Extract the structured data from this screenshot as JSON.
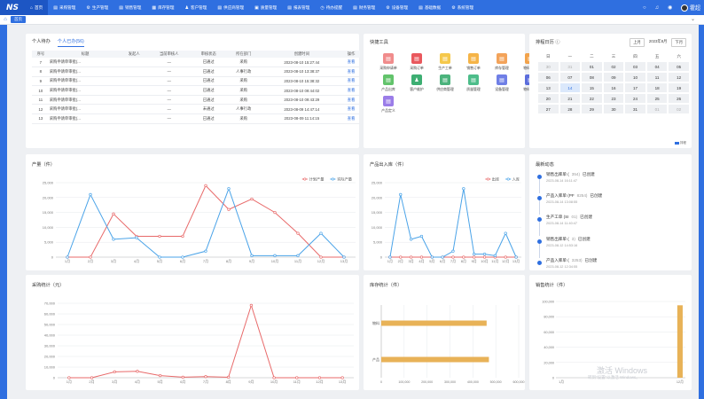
{
  "app": {
    "logo": "NS"
  },
  "menu": [
    {
      "label": "首页",
      "icon": "⌂",
      "active": true
    },
    {
      "label": "采购管理",
      "icon": "▤"
    },
    {
      "label": "生产管理",
      "icon": "⚙"
    },
    {
      "label": "销售管理",
      "icon": "▤"
    },
    {
      "label": "库存管理",
      "icon": "▦"
    },
    {
      "label": "客户管理",
      "icon": "♟"
    },
    {
      "label": "供应商管理",
      "icon": "▤"
    },
    {
      "label": "质量管理",
      "icon": "▣"
    },
    {
      "label": "报表管理",
      "icon": "▤"
    },
    {
      "label": "待办提醒",
      "icon": "◷"
    },
    {
      "label": "财务管理",
      "icon": "▤"
    },
    {
      "label": "设备管理",
      "icon": "⚙"
    },
    {
      "label": "基础数据",
      "icon": "▤"
    },
    {
      "label": "系统管理",
      "icon": "⚙"
    }
  ],
  "topright": {
    "icons": [
      "circle-icon",
      "bell-icon",
      "eye-icon"
    ],
    "user": "霍超"
  },
  "tabsbar": {
    "tab": "首页"
  },
  "tasks": {
    "tabs": [
      "个人待办",
      "个人已办(56)"
    ],
    "headers": [
      "序号",
      "标题",
      "发起人",
      "当前审核人",
      "审核状态",
      "所在部门",
      "创建时间",
      "操作"
    ],
    "rows": [
      [
        "7",
        "采购申请单审批(...",
        "",
        "—",
        "已通过",
        "采购",
        "2023-08-10 15:27:44",
        "查看"
      ],
      [
        "8",
        "采购申请单审批(...",
        "",
        "—",
        "已通过",
        "人事行政",
        "2023-08-10 13:38:37",
        "查看"
      ],
      [
        "9",
        "采购申请单审批(...",
        "",
        "—",
        "已通过",
        "采购",
        "2023-08-10 15:38:32",
        "查看"
      ],
      [
        "10",
        "采购申请单审批(...",
        "",
        "—",
        "已通过",
        "采购",
        "2023-08-10 09:44:02",
        "查看"
      ],
      [
        "11",
        "采购申请单审批(...",
        "",
        "—",
        "已通过",
        "采购",
        "2023-08-10 09:43:29",
        "查看"
      ],
      [
        "12",
        "采购申请单审批(...",
        "",
        "—",
        "未通过",
        "人事行政",
        "2023-08-09 14:47:14",
        "查看"
      ],
      [
        "13",
        "采购申请单审批(...",
        "",
        "—",
        "已通过",
        "采购",
        "2023-08-09 11:14:15",
        "查看"
      ]
    ]
  },
  "quick": {
    "title": "快捷工具",
    "items": [
      {
        "label": "采购申请单",
        "color": "#f08c8c",
        "icon": "▤"
      },
      {
        "label": "采购订单",
        "color": "#e9585d",
        "icon": "▤"
      },
      {
        "label": "生产工单",
        "color": "#f5c84b",
        "icon": "▤"
      },
      {
        "label": "销售订单",
        "color": "#f5b447",
        "icon": "▤"
      },
      {
        "label": "库存管理",
        "color": "#f3a35a",
        "icon": "▤"
      },
      {
        "label": "物料出库",
        "color": "#f2a34c",
        "icon": "▤"
      },
      {
        "label": "产品出库",
        "color": "#62c36b",
        "icon": "▤"
      },
      {
        "label": "客户维护",
        "color": "#3dae72",
        "icon": "♟"
      },
      {
        "label": "供应商管理",
        "color": "#4bb37c",
        "icon": "▤"
      },
      {
        "label": "质量管理",
        "color": "#4dbd8a",
        "icon": "▤"
      },
      {
        "label": "设备管理",
        "color": "#6f7fe6",
        "icon": "▤"
      },
      {
        "label": "物料定义",
        "color": "#5b6ddc",
        "icon": "▤"
      },
      {
        "label": "产品定义",
        "color": "#9b7de8",
        "icon": "▤"
      }
    ]
  },
  "calendar": {
    "title": "排程日历",
    "prev": "上月",
    "month": "2023年8月",
    "next": "下月",
    "weekdays": [
      "日",
      "一",
      "二",
      "三",
      "四",
      "五",
      "六"
    ],
    "weeks": [
      [
        "30",
        "31",
        "01",
        "02",
        "03",
        "04",
        "05"
      ],
      [
        "06",
        "07",
        "08",
        "09",
        "10",
        "11",
        "12"
      ],
      [
        "13",
        "14",
        "15",
        "16",
        "17",
        "18",
        "19"
      ],
      [
        "20",
        "21",
        "22",
        "23",
        "24",
        "25",
        "26"
      ],
      [
        "27",
        "28",
        "29",
        "30",
        "31",
        "01",
        "02"
      ]
    ],
    "legend": "排程"
  },
  "prod_chart": {
    "title": "产量（件）"
  },
  "io_chart": {
    "title": "产品出入库（件）"
  },
  "feed": {
    "title": "最新动态",
    "items": [
      {
        "text": "销售出库单 (",
        "code": "354)",
        "action": "已创建",
        "time": "2023-08-14 16:11:47"
      },
      {
        "text": "产品入库单 (PF",
        "code": "8254)",
        "action": "已创建",
        "time": "2023-08-14 13:08:55"
      },
      {
        "text": "生产工单 (SI",
        "code": "01)",
        "action": "已创建",
        "time": "2023-08-14 11:40:47"
      },
      {
        "text": "销售出库单 (",
        "code": "3)",
        "action": "已创建",
        "time": "2023-08-12 14:53:16"
      },
      {
        "text": "产品入库单 (",
        "code": "3253)",
        "action": "已创建",
        "time": "2023-08-12 12:34:55"
      }
    ]
  },
  "purchase_chart": {
    "title": "采购统计（元）"
  },
  "stock_chart": {
    "title": "库存统计（件）"
  },
  "sales_chart": {
    "title": "销售统计（件）"
  },
  "watermark": {
    "line1": "激活 Windows",
    "line2": "转到\"设置\"以激活 Windows。"
  },
  "chart_data": [
    {
      "type": "line",
      "title": "产量（件）",
      "categories": [
        "1月",
        "2月",
        "3月",
        "4月",
        "5月",
        "6月",
        "7月",
        "8月",
        "9月",
        "10月",
        "11月",
        "12月",
        "13月"
      ],
      "ylim": [
        0,
        25000
      ],
      "yticks": [
        0,
        5000,
        10000,
        15000,
        20000,
        25000
      ],
      "legend": "top-right",
      "series": [
        {
          "name": "计划产量",
          "color": "#e86a6a",
          "values": [
            0,
            0,
            14500,
            7000,
            7000,
            7000,
            24000,
            16000,
            19500,
            15000,
            8000,
            0,
            0
          ]
        },
        {
          "name": "实际产量",
          "color": "#4aa3e8",
          "values": [
            0,
            21000,
            6000,
            6500,
            0,
            0,
            2000,
            23000,
            500,
            500,
            500,
            8000,
            0
          ]
        }
      ]
    },
    {
      "type": "line",
      "title": "产品出入库（件）",
      "categories": [
        "1月",
        "2月",
        "3月",
        "4月",
        "5月",
        "6月",
        "7月",
        "8月",
        "9月",
        "10月",
        "11月",
        "12月",
        "13月"
      ],
      "ylim": [
        0,
        25000
      ],
      "yticks": [
        0,
        5000,
        10000,
        15000,
        20000,
        25000
      ],
      "legend": "top-right",
      "series": [
        {
          "name": "出库",
          "color": "#e86a6a",
          "values": [
            0,
            0,
            0,
            0,
            0,
            0,
            0,
            0,
            0,
            0,
            0,
            0,
            0
          ]
        },
        {
          "name": "入库",
          "color": "#4aa3e8",
          "values": [
            0,
            21000,
            6000,
            7000,
            0,
            0,
            2000,
            23000,
            1000,
            1000,
            500,
            8000,
            0
          ]
        }
      ]
    },
    {
      "type": "line",
      "title": "采购统计（元）",
      "categories": [
        "1月",
        "2月",
        "3月",
        "4月",
        "5月",
        "6月",
        "7月",
        "8月",
        "9月",
        "10月",
        "11月",
        "12月",
        "13月"
      ],
      "ylim": [
        0,
        70000
      ],
      "yticks": [
        0,
        10000,
        20000,
        30000,
        40000,
        50000,
        60000,
        70000
      ],
      "series": [
        {
          "name": "采购",
          "color": "#e86a6a",
          "values": [
            0,
            0,
            5500,
            6000,
            2000,
            500,
            1000,
            500,
            68000,
            0,
            0,
            0,
            0
          ]
        }
      ]
    },
    {
      "type": "bar",
      "orientation": "horizontal",
      "title": "库存统计（件）",
      "categories": [
        "物料",
        "产品"
      ],
      "values": [
        460000,
        470000
      ],
      "xlim": [
        0,
        600000
      ],
      "xticks": [
        0,
        100000,
        200000,
        300000,
        400000,
        500000,
        600000
      ]
    },
    {
      "type": "bar",
      "title": "销售统计（件）",
      "categories": [
        "1月",
        "2月",
        "3月",
        "4月",
        "5月",
        "6月",
        "7月",
        "8月",
        "9月",
        "10月",
        "11月",
        "12月"
      ],
      "values": [
        0,
        0,
        0,
        0,
        0,
        0,
        0,
        0,
        0,
        0,
        0,
        95000
      ],
      "ylim": [
        0,
        100000
      ],
      "yticks": [
        0,
        20000,
        40000,
        60000,
        80000,
        100000
      ]
    }
  ]
}
